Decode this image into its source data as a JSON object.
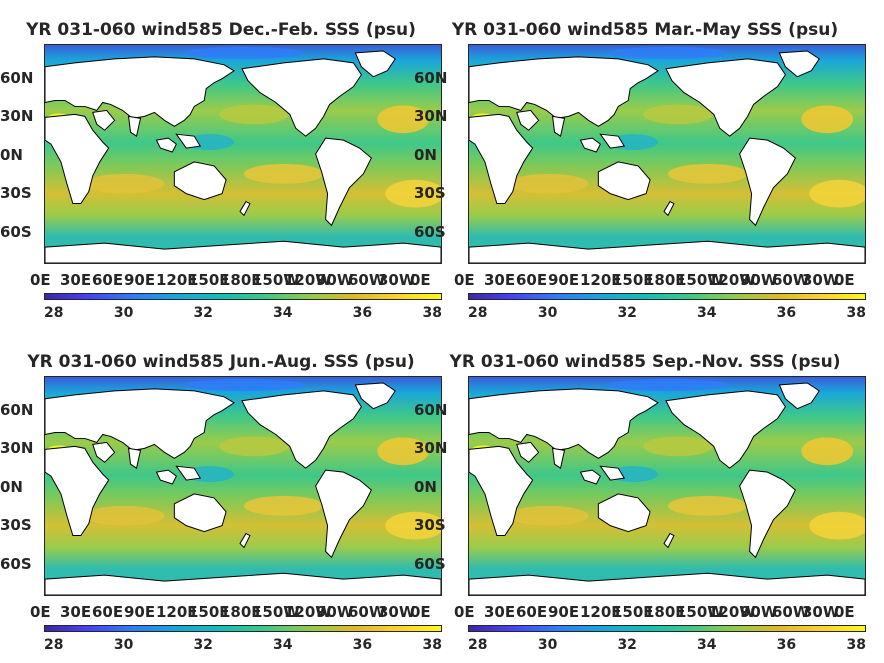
{
  "colorbar_ticks": [
    "28",
    "30",
    "32",
    "34",
    "36",
    "38"
  ],
  "lat_labels": [
    "60N",
    "30N",
    "0N",
    "30S",
    "60S"
  ],
  "lon_labels": [
    "0E",
    "30E",
    "60E",
    "90E",
    "120E",
    "150E",
    "180E",
    "150W",
    "120W",
    "90W",
    "60W",
    "30W",
    "0E"
  ],
  "colormap": [
    "#3e26a8",
    "#4743f8",
    "#2f7cf8",
    "#1aa5db",
    "#12bfb7",
    "#3ec889",
    "#8fcb4e",
    "#d9ba2b",
    "#fcd12e",
    "#f9fb15"
  ],
  "panels": [
    {
      "title": "YR 031-060 wind585 Dec.-Feb. SSS (psu)"
    },
    {
      "title": "YR 031-060 wind585 Mar.-May SSS (psu)"
    },
    {
      "title": "YR 031-060 wind585 Jun.-Aug. SSS (psu)"
    },
    {
      "title": "YR 031-060 wind585 Sep.-Nov. SSS (psu)"
    }
  ]
}
